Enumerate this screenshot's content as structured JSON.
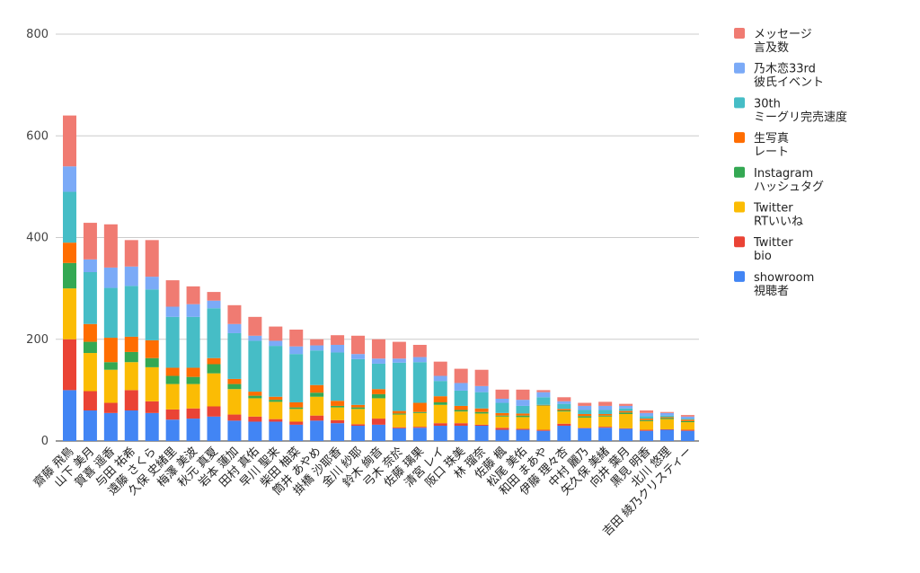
{
  "chart_data": {
    "type": "bar",
    "stacked": true,
    "grid": true,
    "legend_position": "right",
    "ylim": [
      0,
      800
    ],
    "yticks": [
      0,
      200,
      400,
      600,
      800
    ],
    "categories": [
      "齋藤 飛鳥",
      "山下 美月",
      "賀喜 遥香",
      "与田 祐希",
      "遠藤 さくら",
      "久保 史緒里",
      "梅澤 美波",
      "秋元 真夏",
      "岩本 蓮加",
      "田村 真佑",
      "早川 聖来",
      "柴田 柚菜",
      "筒井 あやめ",
      "掛橋 沙耶香",
      "金川 紗耶",
      "鈴木 絢音",
      "弓木 奈於",
      "佐藤 璃果",
      "清宮 レイ",
      "阪口 珠美",
      "林 瑠奈",
      "佐藤 楓",
      "松尾 美佑",
      "和田 まあや",
      "伊藤 理々杏",
      "中村 麗乃",
      "矢久保 美緒",
      "向井 葉月",
      "黒見 明香",
      "北川 悠理",
      "吉田 綾乃クリスティー"
    ],
    "series": [
      {
        "name": "showroom 視聴者",
        "legend": [
          "showroom",
          "視聴者"
        ],
        "color": "#4285f4",
        "values": [
          100,
          60,
          55,
          60,
          55,
          42,
          44,
          48,
          40,
          38,
          38,
          32,
          40,
          35,
          30,
          32,
          25,
          26,
          30,
          30,
          30,
          22,
          22,
          20,
          30,
          25,
          26,
          24,
          20,
          22,
          20
        ]
      },
      {
        "name": "Twitter bio",
        "legend": [
          "Twitter",
          "bio"
        ],
        "color": "#ea4335",
        "values": [
          100,
          38,
          20,
          40,
          23,
          20,
          20,
          20,
          12,
          10,
          5,
          6,
          10,
          6,
          3,
          12,
          2,
          2,
          5,
          5,
          2,
          4,
          2,
          2,
          4,
          1,
          2,
          1,
          2,
          1,
          2
        ]
      },
      {
        "name": "Twitter RTいいね",
        "legend": [
          "Twitter",
          "RTいいね"
        ],
        "color": "#fbbc04",
        "values": [
          100,
          75,
          65,
          55,
          67,
          50,
          48,
          65,
          50,
          36,
          34,
          25,
          37,
          25,
          30,
          40,
          25,
          27,
          36,
          23,
          22,
          22,
          23,
          47,
          24,
          20,
          20,
          28,
          17,
          20,
          15
        ]
      },
      {
        "name": "Instagram ハッシュタグ",
        "legend": [
          "Instagram",
          "ハッシュタグ"
        ],
        "color": "#34a853",
        "values": [
          50,
          22,
          15,
          20,
          18,
          16,
          14,
          18,
          10,
          5,
          4,
          3,
          8,
          3,
          3,
          8,
          2,
          2,
          5,
          3,
          3,
          2,
          3,
          1,
          2,
          3,
          2,
          3,
          2,
          2,
          2
        ]
      },
      {
        "name": "生写真 レート",
        "legend": [
          "生写真",
          "レート"
        ],
        "color": "#ff6d01",
        "values": [
          40,
          35,
          48,
          30,
          35,
          16,
          18,
          12,
          10,
          8,
          6,
          10,
          15,
          10,
          5,
          10,
          5,
          18,
          12,
          8,
          7,
          5,
          4,
          1,
          3,
          4,
          3,
          3,
          3,
          2,
          3
        ]
      },
      {
        "name": "30th ミーグリ完売速度",
        "legend": [
          "30th",
          "ミーグリ完売速度"
        ],
        "color": "#46bdc6",
        "values": [
          100,
          102,
          98,
          100,
          100,
          100,
          100,
          98,
          90,
          100,
          100,
          95,
          68,
          95,
          90,
          50,
          95,
          80,
          30,
          30,
          32,
          20,
          15,
          15,
          10,
          8,
          8,
          5,
          5,
          3,
          2
        ]
      },
      {
        "name": "乃木恋33rd 彼氏イベント",
        "legend": [
          "乃木恋33rd",
          "彼氏イベント"
        ],
        "color": "#7baaf7",
        "values": [
          50,
          25,
          40,
          38,
          25,
          20,
          25,
          15,
          18,
          10,
          10,
          15,
          10,
          15,
          10,
          10,
          8,
          10,
          10,
          15,
          12,
          8,
          12,
          10,
          5,
          8,
          8,
          5,
          6,
          5,
          4
        ]
      },
      {
        "name": "メッセージ 言及数",
        "legend": [
          "メッセージ",
          "言及数"
        ],
        "color": "#f07b72",
        "values": [
          100,
          72,
          85,
          52,
          72,
          52,
          35,
          17,
          37,
          37,
          28,
          33,
          12,
          19,
          36,
          38,
          33,
          24,
          28,
          28,
          32,
          18,
          20,
          4,
          8,
          6,
          8,
          4,
          5,
          2,
          3
        ]
      }
    ]
  }
}
